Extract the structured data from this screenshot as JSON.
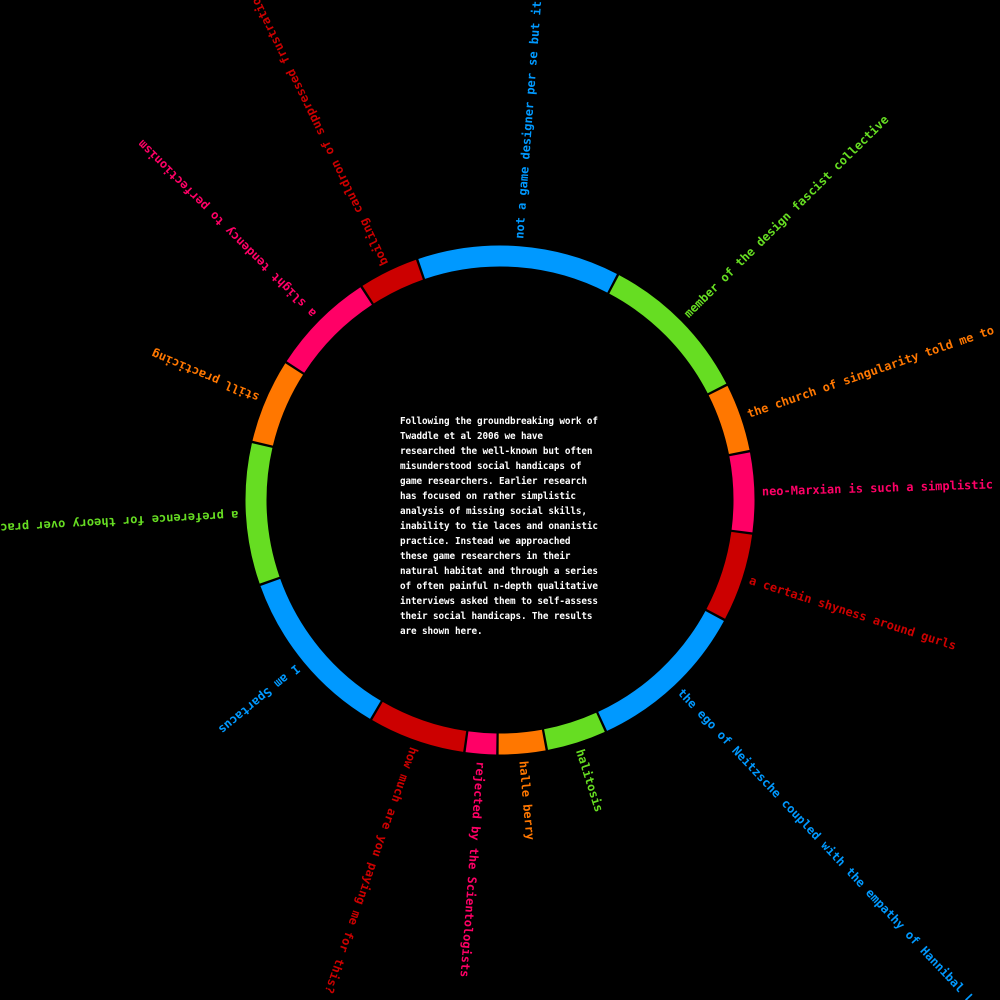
{
  "chart_data": {
    "type": "pie",
    "style": "donut-ring",
    "background": "#000000",
    "description": "Following the groundbreaking work of Twaddle et al 2006 we have researched the well-known but often misunderstood social handicaps of game researchers. Earlier research has focused on rather simplistic analysis of missing social skills, inability to tie laces and onanistic practice. Instead we approached these game researchers in their natural habitat and through a series of often painful n-depth qualitative interviews asked them to self-assess their social handicaps. The results are shown here.",
    "slices": [
      {
        "label": "not a game designer per se but it is good",
        "value": 50,
        "color": "#0099ff"
      },
      {
        "label": "member of the design fascist collective",
        "value": 38,
        "color": "#66dd22"
      },
      {
        "label": "the church of singularity told me to do it",
        "value": 17,
        "color": "#ff7700"
      },
      {
        "label": "neo-Marxian is such a simplistic term",
        "value": 20,
        "color": "#ff0066"
      },
      {
        "label": "a certain shyness around gurls",
        "value": 22,
        "color": "#cc0000"
      },
      {
        "label": "the ego of Neitzsche coupled with the empathy of Hannibal Lecter",
        "value": 40,
        "color": "#0099ff"
      },
      {
        "label": "halitosis",
        "value": 15,
        "color": "#66dd22"
      },
      {
        "label": "halle berry",
        "value": 12,
        "color": "#ff7700"
      },
      {
        "label": "rejected by the Scientologists",
        "value": 8,
        "color": "#ff0066"
      },
      {
        "label": "how much are you paying me for this?",
        "value": 24,
        "color": "#cc0000"
      },
      {
        "label": "I am Spartacus",
        "value": 43,
        "color": "#0099ff"
      },
      {
        "label": "a preference for theory over practice",
        "value": 35,
        "color": "#66dd22"
      },
      {
        "label": "still practicing",
        "value": 21,
        "color": "#ff7700"
      },
      {
        "label": "a slight tendency to perfectionism",
        "value": 26,
        "color": "#ff0066"
      },
      {
        "label": "boiling cauldron of suppressed frustration",
        "value": 15,
        "color": "#cc0000"
      }
    ]
  }
}
